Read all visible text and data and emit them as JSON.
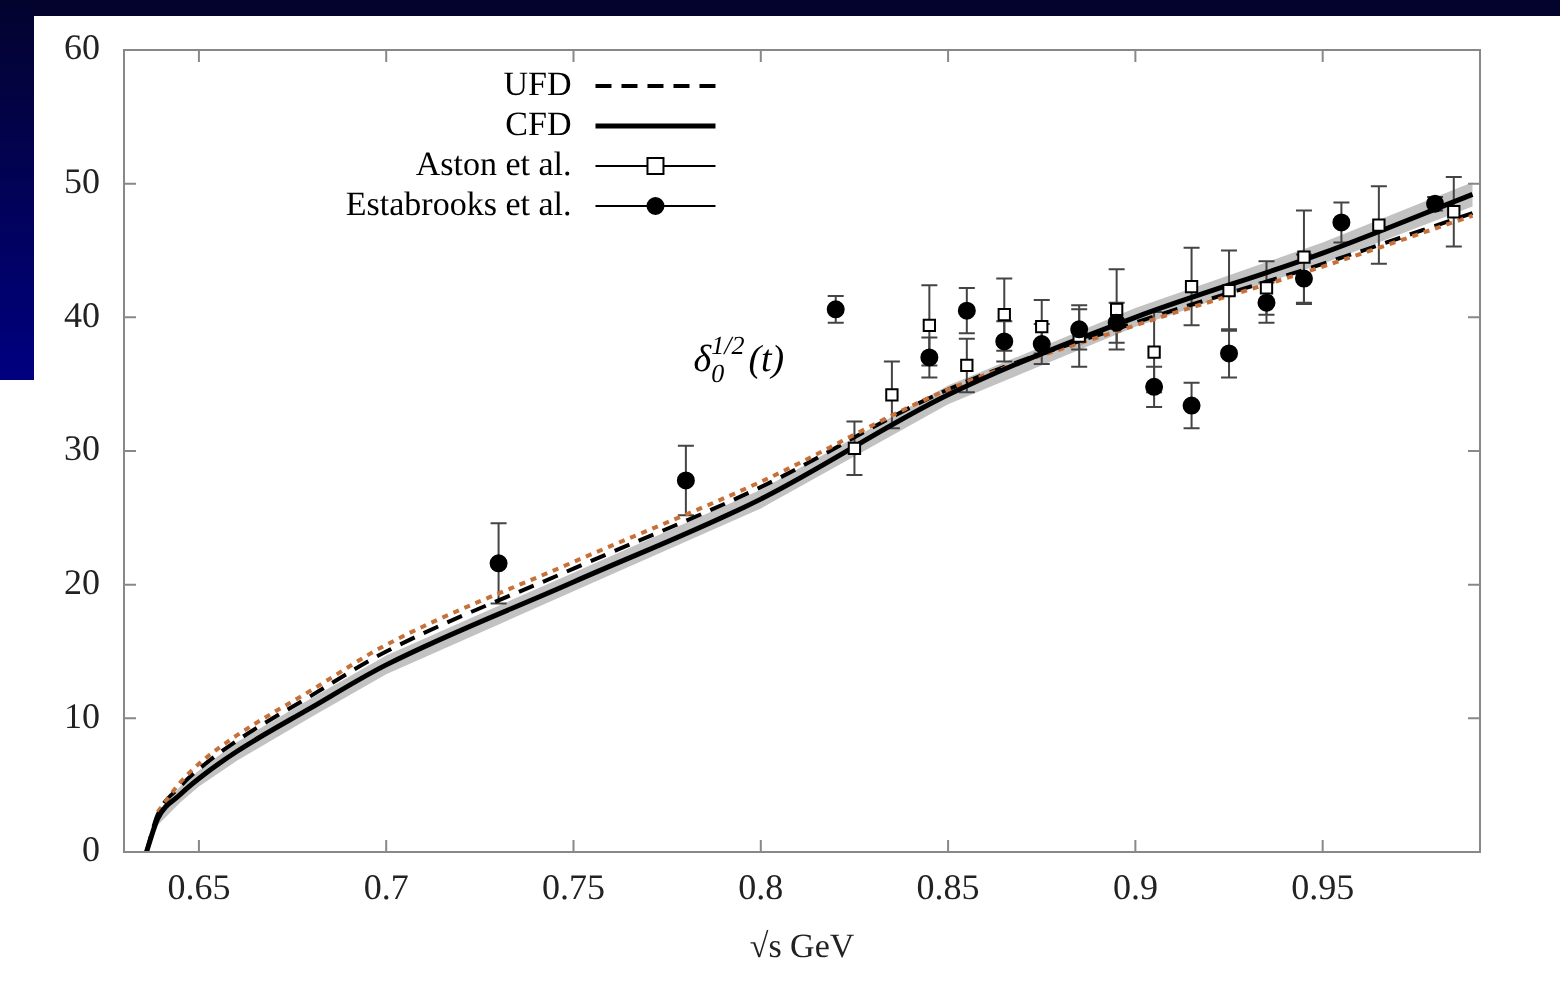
{
  "chart_data": {
    "type": "scatter",
    "xlabel": "√s GeV",
    "annotations": [
      "δ$_{0}$$^{1/2}$(t)"
    ],
    "xlim": [
      0.63,
      0.992
    ],
    "xticks": [
      0.65,
      0.7,
      0.75,
      0.8,
      0.85,
      0.9,
      0.95
    ],
    "ylim": [
      0,
      60
    ],
    "yticks": [
      0,
      10,
      20,
      30,
      40,
      50,
      60
    ],
    "grid": false,
    "legend": "top left",
    "series": [
      {
        "name": "UFD",
        "type": "line",
        "color": "#000000",
        "line_style": "dashed",
        "marker": "none",
        "x": [
          0.636,
          0.639,
          0.645,
          0.65,
          0.66,
          0.68,
          0.7,
          0.75,
          0.8,
          0.85,
          0.9,
          0.95,
          0.99
        ],
        "values": [
          0,
          2.8,
          4.9,
          6.2,
          8.3,
          11.7,
          15.0,
          21.2,
          27.3,
          34.6,
          39.6,
          44.0,
          47.8
        ]
      },
      {
        "type": "line",
        "color": "#c8703a",
        "line_style": "dotted",
        "marker": "none",
        "x": [
          0.639,
          0.645,
          0.65,
          0.66,
          0.68,
          0.7,
          0.75,
          0.8,
          0.85,
          0.9,
          0.95,
          0.99
        ],
        "values": [
          3.0,
          5.2,
          6.6,
          8.7,
          12.1,
          15.5,
          21.7,
          27.7,
          34.6,
          39.4,
          43.8,
          47.6
        ]
      },
      {
        "name": "CFD",
        "type": "line",
        "color": "#000000",
        "line_style": "solid",
        "marker": "none",
        "x": [
          0.636,
          0.639,
          0.645,
          0.65,
          0.66,
          0.68,
          0.7,
          0.75,
          0.8,
          0.85,
          0.9,
          0.95,
          0.99
        ],
        "values": [
          0,
          2.5,
          4.3,
          5.5,
          7.5,
          10.8,
          14.0,
          20.2,
          26.4,
          34.2,
          40.0,
          44.8,
          49.2
        ],
        "lower": [
          0,
          2.0,
          3.7,
          4.9,
          6.8,
          10.1,
          13.3,
          19.5,
          25.7,
          33.5,
          39.3,
          44.0,
          48.3
        ],
        "upper": [
          0,
          3.0,
          4.9,
          6.1,
          8.2,
          11.5,
          14.7,
          20.9,
          27.1,
          34.9,
          40.7,
          45.6,
          50.1
        ]
      },
      {
        "name": "Aston et al.",
        "color": "#000000",
        "marker": "square",
        "x": [
          0.825,
          0.835,
          0.845,
          0.855,
          0.865,
          0.875,
          0.885,
          0.895,
          0.905,
          0.915,
          0.925,
          0.935,
          0.945,
          0.965,
          0.985
        ],
        "values": [
          30.2,
          34.2,
          39.4,
          36.4,
          40.2,
          39.3,
          38.6,
          40.6,
          37.4,
          42.3,
          42.0,
          42.2,
          44.5,
          46.9,
          47.9
        ],
        "errors": [
          2,
          2.5,
          3,
          2,
          2.7,
          2,
          2.3,
          3,
          3,
          2.9,
          3,
          2,
          3.5,
          2.9,
          2.6
        ]
      },
      {
        "name": "Estabrooks et al.",
        "color": "#000000",
        "marker": "circle",
        "x": [
          0.73,
          0.78,
          0.82,
          0.845,
          0.855,
          0.865,
          0.875,
          0.885,
          0.895,
          0.905,
          0.915,
          0.925,
          0.935,
          0.945,
          0.955,
          0.98
        ],
        "values": [
          21.6,
          27.8,
          40.6,
          37.0,
          40.5,
          38.2,
          38.0,
          39.1,
          39.6,
          34.8,
          33.4,
          37.3,
          41.1,
          42.9,
          47.1,
          48.5
        ],
        "errors": [
          3,
          2.6,
          1,
          1.5,
          1.7,
          1.5,
          1.5,
          1.5,
          1.5,
          1.5,
          1.7,
          1.8,
          1.5,
          1.8,
          1.5,
          0.5
        ]
      }
    ]
  }
}
